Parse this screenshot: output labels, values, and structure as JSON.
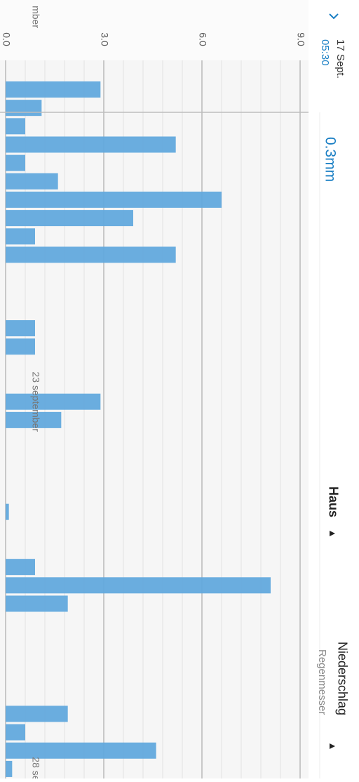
{
  "header": {
    "time_label": "17 Sept.",
    "time": "05:30",
    "value_readout": "0.3mm",
    "location": "Haus",
    "sensor": "Niederschlag",
    "sensor_type": "Regenmesser"
  },
  "chart_data": {
    "type": "bar",
    "orientation": "horizontal",
    "color": "#62a9dd",
    "partial_date_label": "mber",
    "categories": [
      null,
      null,
      null,
      null,
      null,
      null,
      null,
      null,
      null,
      null,
      null,
      null,
      null,
      null,
      null,
      null,
      null,
      "23 september",
      null,
      null,
      null,
      null,
      null,
      null,
      null,
      null,
      null,
      null,
      null,
      null,
      null,
      null,
      null,
      null,
      null,
      null,
      null,
      "28 se"
    ],
    "values": [
      2.9,
      1.1,
      0.6,
      5.2,
      0.6,
      1.6,
      6.6,
      3.9,
      0.9,
      5.2,
      0,
      0,
      0,
      0.9,
      0.9,
      0,
      0,
      2.9,
      1.7,
      0,
      0,
      0,
      0,
      0.1,
      0,
      0,
      0.9,
      8.1,
      1.9,
      0,
      0,
      0,
      0,
      0,
      1.9,
      0.6,
      4.6,
      0.2
    ],
    "ylim": [
      0,
      9
    ],
    "yticks": [
      {
        "value": 0,
        "label": "0.0"
      },
      {
        "value": 3,
        "label": "3.0"
      },
      {
        "value": 6,
        "label": "6.0"
      },
      {
        "value": 9,
        "label": "9.0"
      }
    ],
    "grid": true
  }
}
